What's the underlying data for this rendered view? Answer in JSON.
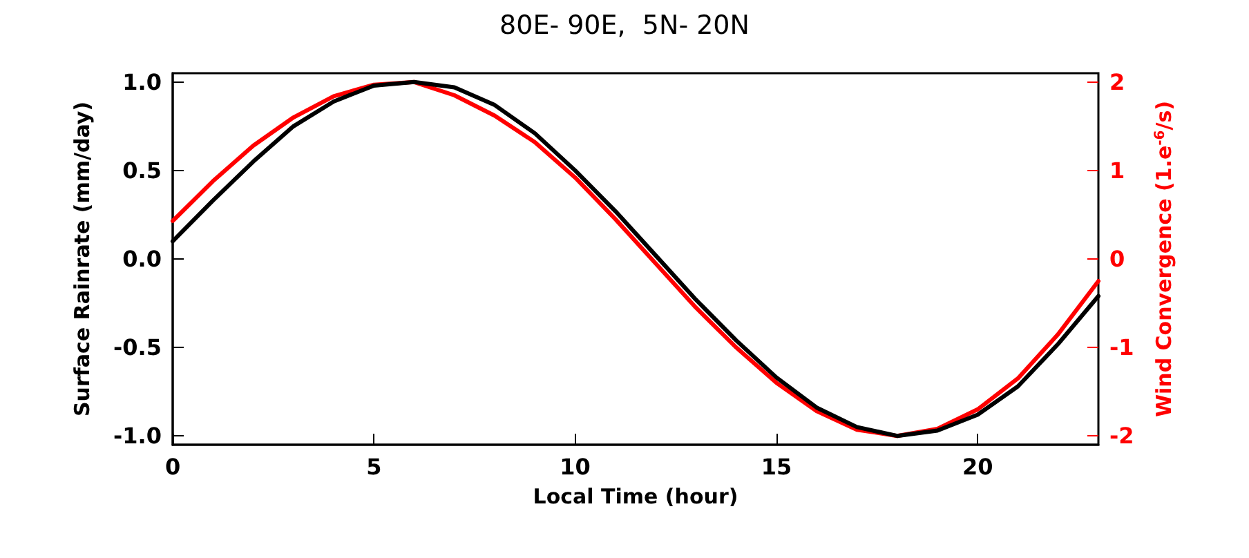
{
  "chart_data": {
    "type": "line",
    "title": "80E- 90E,  5N- 20N",
    "xlabel": "Local Time (hour)",
    "ylabel": "Surface Rainrate (mm/day)",
    "y2label": "Wind Convergence (1.e$^{-6}$/s)",
    "x": [
      0,
      1,
      2,
      3,
      4,
      5,
      6,
      7,
      8,
      9,
      10,
      11,
      12,
      13,
      14,
      15,
      16,
      17,
      18,
      19,
      20,
      21,
      22,
      23
    ],
    "series": [
      {
        "color": "#000000",
        "values": [
          0.1,
          0.33,
          0.55,
          0.75,
          0.89,
          0.98,
          1.0,
          0.97,
          0.87,
          0.71,
          0.5,
          0.27,
          0.02,
          -0.23,
          -0.46,
          -0.67,
          -0.84,
          -0.95,
          -1.0,
          -0.97,
          -0.88,
          -0.72,
          -0.48,
          -0.21
        ]
      },
      {
        "color": "#ff0000",
        "axis": "y2",
        "values": [
          0.43,
          0.88,
          1.28,
          1.6,
          1.84,
          1.97,
          2.0,
          1.85,
          1.62,
          1.32,
          0.92,
          0.45,
          -0.05,
          -0.55,
          -1.0,
          -1.4,
          -1.72,
          -1.93,
          -2.0,
          -1.92,
          -1.7,
          -1.35,
          -0.85,
          -0.25
        ]
      }
    ],
    "xlim": [
      0,
      23
    ],
    "xticks": [
      0,
      5,
      10,
      15,
      20
    ],
    "ylim": [
      -1.05,
      1.05
    ],
    "yticks": [
      {
        "value": -1,
        "label": "-1.0"
      },
      -0.5,
      {
        "value": 0,
        "label": "0.0"
      },
      0.5,
      {
        "value": 1,
        "label": "1.0"
      }
    ],
    "y2lim": [
      -2.1,
      2.1
    ],
    "y2ticks": [
      -2,
      -1,
      0,
      1,
      2
    ],
    "grid": false,
    "marker": "none",
    "line_style": "solid"
  }
}
